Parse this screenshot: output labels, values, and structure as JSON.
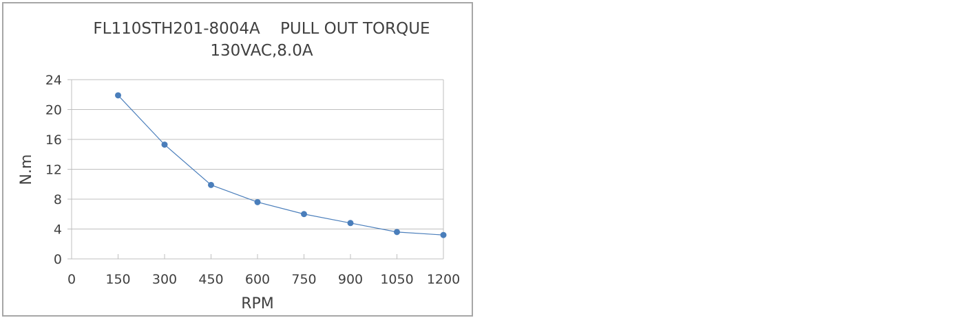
{
  "chart_data": {
    "type": "line",
    "title": "FL110STH201-8004A    PULL OUT TORQUE",
    "subtitle": "130VAC,8.0A",
    "xlabel": "RPM",
    "ylabel": "N.m",
    "xlim": [
      0,
      1200
    ],
    "ylim": [
      0,
      24
    ],
    "xticks": [
      0,
      150,
      300,
      450,
      600,
      750,
      900,
      1050,
      1200
    ],
    "yticks": [
      0,
      4,
      8,
      12,
      16,
      20,
      24
    ],
    "grid": true,
    "legend": "none",
    "series": [
      {
        "color": "#4a7ebb",
        "x": [
          150,
          300,
          450,
          600,
          750,
          900,
          1050,
          1200
        ],
        "y": [
          21.9,
          15.3,
          9.9,
          7.6,
          6.0,
          4.8,
          3.6,
          3.2
        ]
      }
    ]
  }
}
